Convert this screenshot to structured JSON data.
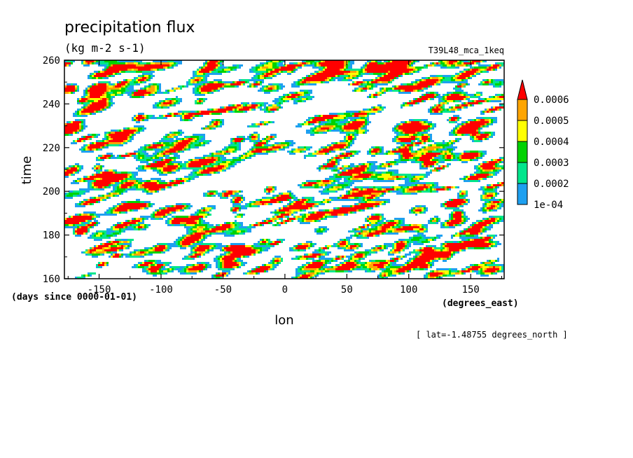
{
  "chart_data": {
    "type": "heatmap",
    "title": "precipitation flux",
    "units": "(kg m-2 s-1)",
    "run_label": "T39L48_mca_1keq",
    "xlabel": "lon",
    "x_units": "(degrees_east)",
    "ylabel": "time",
    "y_units": "(days since 0000-01-01)",
    "slice_note": "[ lat=-1.48755 degrees_north ]",
    "xlim": [
      -178,
      177
    ],
    "ylim": [
      160,
      260
    ],
    "x_ticks": [
      -150,
      -100,
      -50,
      0,
      50,
      100,
      150
    ],
    "x_tick_labels": [
      "-150",
      "-100",
      "-50",
      "0",
      "50",
      "100",
      "150"
    ],
    "y_ticks": [
      160,
      180,
      200,
      220,
      240,
      260
    ],
    "y_tick_labels": [
      "160",
      "180",
      "200",
      "220",
      "240",
      "260"
    ],
    "legend_position": "right",
    "legend_levels": [
      {
        "label": "1e-04",
        "value": 0.0001,
        "color": "#1ea0f0"
      },
      {
        "label": "0.0002",
        "value": 0.0002,
        "color": "#00e68c"
      },
      {
        "label": "0.0003",
        "value": 0.0003,
        "color": "#00d200"
      },
      {
        "label": "0.0004",
        "value": 0.0004,
        "color": "#ffff00"
      },
      {
        "label": "0.0005",
        "value": 0.0005,
        "color": "#ffa500"
      },
      {
        "label": "0.0006",
        "value": 0.0006,
        "color": "#ff0000"
      }
    ],
    "background_color": "#ffffff"
  }
}
